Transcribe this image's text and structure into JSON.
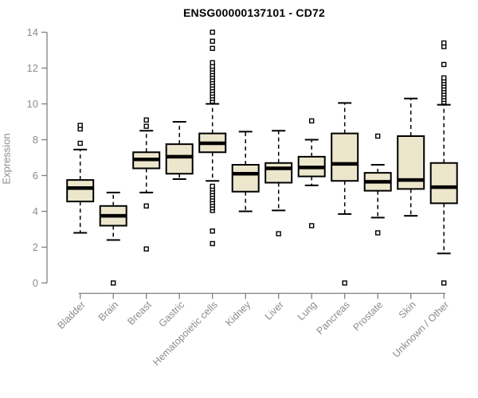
{
  "chart_data": {
    "type": "boxplot",
    "title": "ENSG00000137101 - CD72",
    "ylabel": "Expression",
    "xlabel": "",
    "ylim": [
      0,
      14
    ],
    "yticks": [
      0,
      2,
      4,
      6,
      8,
      10,
      12,
      14
    ],
    "grid": false,
    "legend": "none",
    "colors": {
      "box_fill": "#ece6cc",
      "box_stroke": "#000000",
      "median": "#000000",
      "whisker": "#000000",
      "axis": "#808080",
      "axis_text": "#8c8c8c",
      "title_text": "#000000",
      "background": "#ffffff"
    },
    "categories": [
      "Bladder",
      "Brain",
      "Breast",
      "Gastric",
      "Hematopoietic cells",
      "Kidney",
      "Liver",
      "Lung",
      "Pancreas",
      "Prostate",
      "Skin",
      "Unknown / Other"
    ],
    "series": [
      {
        "name": "Bladder",
        "low": 2.8,
        "q1": 4.55,
        "median": 5.3,
        "q3": 5.75,
        "high": 7.45,
        "outliers": [
          7.8,
          8.6,
          8.8
        ]
      },
      {
        "name": "Brain",
        "low": 2.4,
        "q1": 3.2,
        "median": 3.75,
        "q3": 4.3,
        "high": 5.05,
        "outliers": [
          0
        ]
      },
      {
        "name": "Breast",
        "low": 5.05,
        "q1": 6.4,
        "median": 6.9,
        "q3": 7.3,
        "high": 8.5,
        "outliers": [
          1.9,
          4.3,
          8.75,
          9.1
        ]
      },
      {
        "name": "Gastric",
        "low": 5.8,
        "q1": 6.1,
        "median": 7.05,
        "q3": 7.75,
        "high": 9.0,
        "outliers": []
      },
      {
        "name": "Hematopoietic cells",
        "low": 5.7,
        "q1": 7.3,
        "median": 7.8,
        "q3": 8.35,
        "high": 10.0,
        "outliers": [
          2.2,
          2.9,
          4.05,
          4.2,
          4.35,
          4.5,
          4.65,
          4.8,
          4.95,
          5.1,
          5.25,
          5.4,
          10.15,
          10.3,
          10.45,
          10.6,
          10.75,
          10.9,
          11.05,
          11.2,
          11.35,
          11.5,
          11.65,
          11.8,
          11.95,
          12.1,
          12.3,
          13.1,
          13.5,
          14.0
        ]
      },
      {
        "name": "Kidney",
        "low": 4.0,
        "q1": 5.1,
        "median": 6.1,
        "q3": 6.6,
        "high": 8.45,
        "outliers": []
      },
      {
        "name": "Liver",
        "low": 4.05,
        "q1": 5.6,
        "median": 6.4,
        "q3": 6.7,
        "high": 8.5,
        "outliers": [
          2.75
        ]
      },
      {
        "name": "Lung",
        "low": 5.45,
        "q1": 5.95,
        "median": 6.45,
        "q3": 7.05,
        "high": 8.0,
        "outliers": [
          3.2,
          9.05
        ]
      },
      {
        "name": "Pancreas",
        "low": 3.85,
        "q1": 5.7,
        "median": 6.65,
        "q3": 8.35,
        "high": 10.05,
        "outliers": [
          0
        ]
      },
      {
        "name": "Prostate",
        "low": 3.65,
        "q1": 5.15,
        "median": 5.65,
        "q3": 6.15,
        "high": 6.6,
        "outliers": [
          2.8,
          8.2
        ]
      },
      {
        "name": "Skin",
        "low": 3.75,
        "q1": 5.25,
        "median": 5.75,
        "q3": 8.2,
        "high": 10.3,
        "outliers": []
      },
      {
        "name": "Unknown / Other",
        "low": 1.65,
        "q1": 4.45,
        "median": 5.35,
        "q3": 6.7,
        "high": 9.95,
        "outliers": [
          0,
          10.1,
          10.25,
          10.4,
          10.55,
          10.7,
          10.85,
          11.0,
          11.15,
          11.3,
          11.45,
          12.2,
          13.2,
          13.4
        ]
      }
    ]
  }
}
